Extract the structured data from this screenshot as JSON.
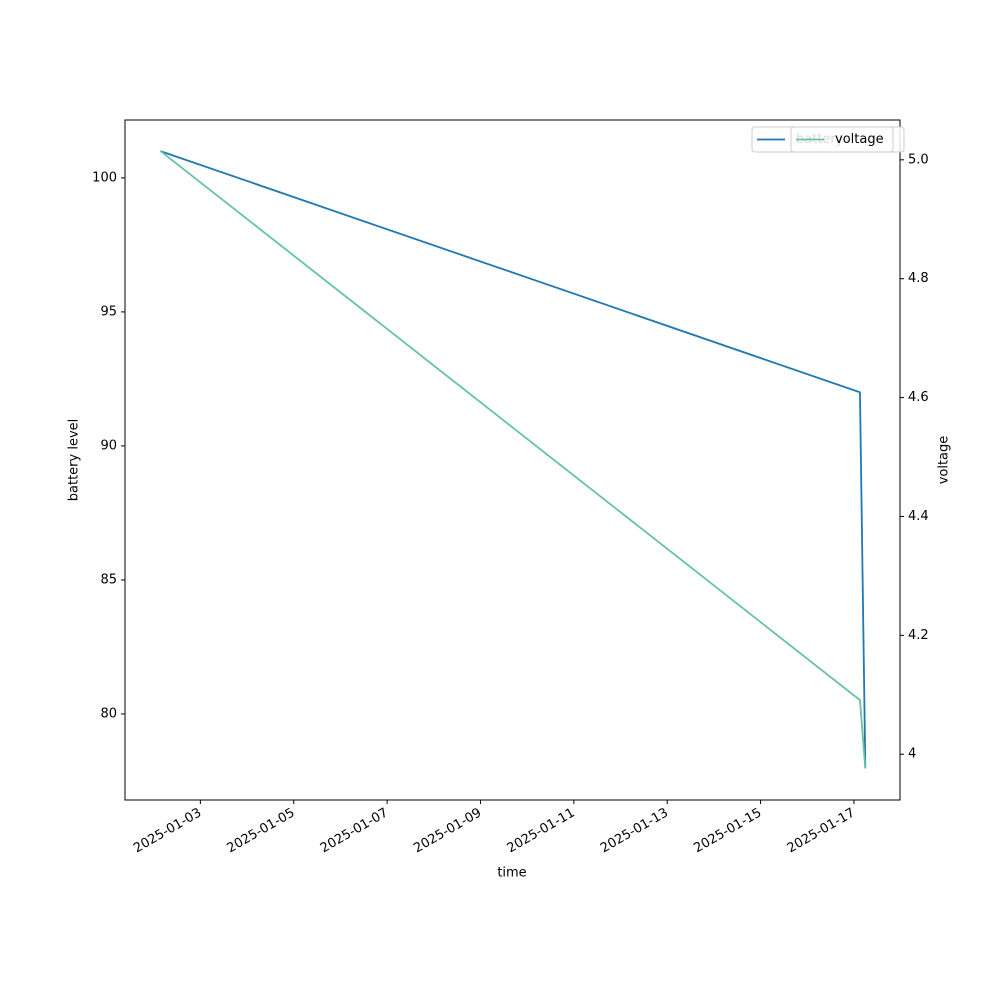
{
  "chart_data": {
    "type": "line",
    "x_label": "time",
    "y_label": "battery level",
    "y2_label": "voltage",
    "x": [
      "2025-01-02 03:25",
      "2025-01-17 03:05",
      "2025-01-17 05:50"
    ],
    "series": [
      {
        "name": "battery",
        "color": "#1f77b4",
        "values": [
          101,
          92,
          78
        ]
      },
      {
        "name": "voltage",
        "color": "#66c2a5",
        "values": [
          5.015,
          4.091,
          3.976
        ],
        "axis": "y2"
      }
    ],
    "xlim": [
      "2025-01-01 09:15",
      "2025-01-17 23:40"
    ],
    "xticks": [
      "2025-01-03",
      "2025-01-05",
      "2025-01-07",
      "2025-01-09",
      "2025-01-11",
      "2025-01-13",
      "2025-01-15",
      "2025-01-17"
    ],
    "ylim": [
      76.79,
      102.16
    ],
    "yticks": [
      80,
      85,
      90,
      95,
      100
    ],
    "y2lim": [
      3.923,
      5.067
    ],
    "y2ticks": [
      4.0,
      {
        "value": 4.2,
        "label": "4.2"
      },
      {
        "value": 4.4,
        "label": "4.4"
      },
      {
        "value": 4.6,
        "label": "4.6"
      },
      {
        "value": 4.8,
        "label": "4.8"
      },
      {
        "value": 5.0,
        "label": "5.0"
      }
    ],
    "grid": false,
    "legend": "upper right"
  }
}
